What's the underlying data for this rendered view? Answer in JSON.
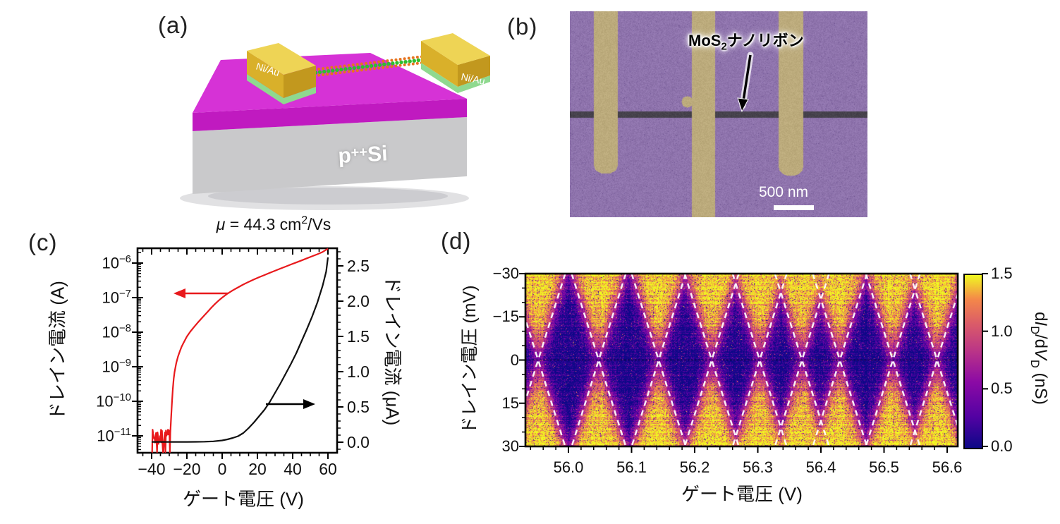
{
  "panels": {
    "a": {
      "label": "(a)",
      "electrode_label_left": "Ni/Au",
      "electrode_label_right": "Ni/Au",
      "substrate_label": {
        "base": "p",
        "sup": "++",
        "rest": "Si"
      },
      "colors": {
        "oxide_top": "#d632d6",
        "oxide_front": "#c01ac0",
        "substrate_front": "#c9c9cb",
        "gold_top": "#eed455",
        "gold_front": "#d9b02a",
        "gold_side": "#c2981e",
        "contact_green": "#8fd98f",
        "atom_orange": "#e6731f",
        "atom_green": "#2fbf2f"
      }
    },
    "b": {
      "label": "(b)",
      "annotation": {
        "prefix": "MoS",
        "sub": "2",
        "suffix": "ナノリボン"
      },
      "scale_bar_text": "500 nm",
      "colors": {
        "background": "#8f74ad",
        "electrode": "#bcab7c",
        "ribbon": "#46424c"
      }
    },
    "c": {
      "label": "(c)"
    },
    "d": {
      "label": "(d)"
    }
  },
  "chart_data": [
    {
      "panel": "c",
      "type": "line",
      "title": {
        "mu": "μ",
        "mid": " = 44.3 cm",
        "sup": "2",
        "end": "/Vs"
      },
      "xlabel": "ゲート電圧 (V)",
      "x_axis": {
        "major_ticks": [
          -40,
          -20,
          0,
          20,
          40,
          60
        ],
        "minor_step": 5,
        "range": [
          -48,
          65
        ]
      },
      "left_axis": {
        "label": "ドレイン電流 (A)",
        "scale": "log",
        "base": "10",
        "decades": [
          -6,
          -7,
          -8,
          -9,
          -10,
          -11
        ],
        "range_log10": [
          -11.5,
          -5.57
        ]
      },
      "right_axis": {
        "label": "ドレイン電流 (μA)",
        "values": [
          2.5,
          2.0,
          1.5,
          1.0,
          0.5,
          0.0
        ],
        "tick_labels": [
          "2.5",
          "2.0",
          "1.5",
          "1.0",
          "0.5",
          "0.0"
        ],
        "minor_step": 0.1,
        "range": [
          -0.15,
          2.75
        ]
      },
      "noise_floor_A": 7e-12,
      "series": [
        {
          "name": "drain-current-log-A",
          "axis": "left",
          "color": "#e8191c",
          "x": [
            -29.4,
            -29,
            -28.5,
            -28,
            -27.5,
            -27,
            -26,
            -25,
            -24,
            -23,
            -22,
            -21,
            -20,
            -18,
            -16,
            -14,
            -12,
            -10,
            -8,
            -6,
            -4,
            -2,
            0,
            3,
            6,
            9,
            12,
            15,
            18,
            21,
            24,
            27,
            30,
            33,
            36,
            39,
            42,
            45,
            48,
            51,
            54,
            57,
            60
          ],
          "y": [
            1.2e-11,
            3e-11,
            9e-11,
            2.2e-10,
            4.5e-10,
            7e-10,
            1.3e-09,
            2e-09,
            2.8e-09,
            3.8e-09,
            4.8e-09,
            6e-09,
            7.5e-09,
            1.05e-08,
            1.4e-08,
            1.85e-08,
            2.4e-08,
            3.1e-08,
            4e-08,
            5.2e-08,
            6.6e-08,
            8.2e-08,
            1e-07,
            1.3e-07,
            1.62e-07,
            1.98e-07,
            2.4e-07,
            2.85e-07,
            3.35e-07,
            3.9e-07,
            4.5e-07,
            5.2e-07,
            6e-07,
            6.9e-07,
            7.9e-07,
            9.1e-07,
            1.04e-06,
            1.19e-06,
            1.37e-06,
            1.57e-06,
            1.8e-06,
            2.1e-06,
            2.6e-06
          ]
        },
        {
          "name": "drain-current-linear-uA",
          "axis": "right",
          "color": "#111111",
          "x": [
            -40,
            -30,
            -25,
            -20,
            -15,
            -10,
            -5,
            0,
            3,
            6,
            9,
            12,
            15,
            18,
            21,
            24,
            27,
            30,
            33,
            36,
            39,
            42,
            45,
            48,
            51,
            54,
            57,
            59,
            60
          ],
          "y": [
            0.004,
            0.004,
            0.004,
            0.004,
            0.005,
            0.007,
            0.012,
            0.025,
            0.04,
            0.06,
            0.085,
            0.13,
            0.2,
            0.28,
            0.37,
            0.46,
            0.57,
            0.7,
            0.83,
            0.97,
            1.11,
            1.26,
            1.43,
            1.6,
            1.78,
            1.98,
            2.22,
            2.42,
            2.62
          ]
        }
      ]
    },
    {
      "panel": "d",
      "type": "heatmap",
      "xlabel": "ゲート電圧 (V)",
      "ylabel": "ドレイン電圧 (mV)",
      "x_range": [
        55.932,
        56.617
      ],
      "x_ticks": [
        56.0,
        56.1,
        56.2,
        56.3,
        56.4,
        56.5,
        56.6
      ],
      "x_tick_labels": [
        "56.0",
        "56.1",
        "56.2",
        "56.3",
        "56.4",
        "56.5",
        "56.6"
      ],
      "x_minor_step": 0.02,
      "y_range_mV": [
        -30,
        30
      ],
      "y_ticks": [
        -30,
        -15,
        0,
        15,
        30
      ],
      "y_tick_labels": [
        "−30",
        "−15",
        "0",
        "15",
        "30"
      ],
      "y_minor_step": 5,
      "colorbar": {
        "ticks": [
          0.0,
          0.5,
          1.0,
          1.5
        ],
        "tick_labels": [
          "0.0",
          "0.5",
          "1.0",
          "1.5"
        ],
        "label_parts": [
          {
            "t": "d"
          },
          {
            "t": "I",
            "i": true
          },
          {
            "t": "D",
            "s": true
          },
          {
            "t": "/d"
          },
          {
            "t": "V",
            "i": true
          },
          {
            "t": "D",
            "s": true
          },
          {
            "t": " (nS)"
          }
        ],
        "clim_nS": [
          0.0,
          1.5
        ]
      },
      "degeneracy_points_V": [
        55.952,
        56.048,
        56.143,
        56.227,
        56.303,
        56.37,
        56.43,
        56.514,
        56.584
      ],
      "diamond_edge_slope_mV_per_V": 700,
      "colormap": "plasma",
      "colormap_stops": [
        [
          0.0,
          "#0d0887"
        ],
        [
          0.18,
          "#5302a3"
        ],
        [
          0.38,
          "#8b0aa5"
        ],
        [
          0.55,
          "#b83289"
        ],
        [
          0.72,
          "#db5c68"
        ],
        [
          0.86,
          "#f48849"
        ],
        [
          1.0,
          "#f0f921"
        ]
      ]
    }
  ]
}
